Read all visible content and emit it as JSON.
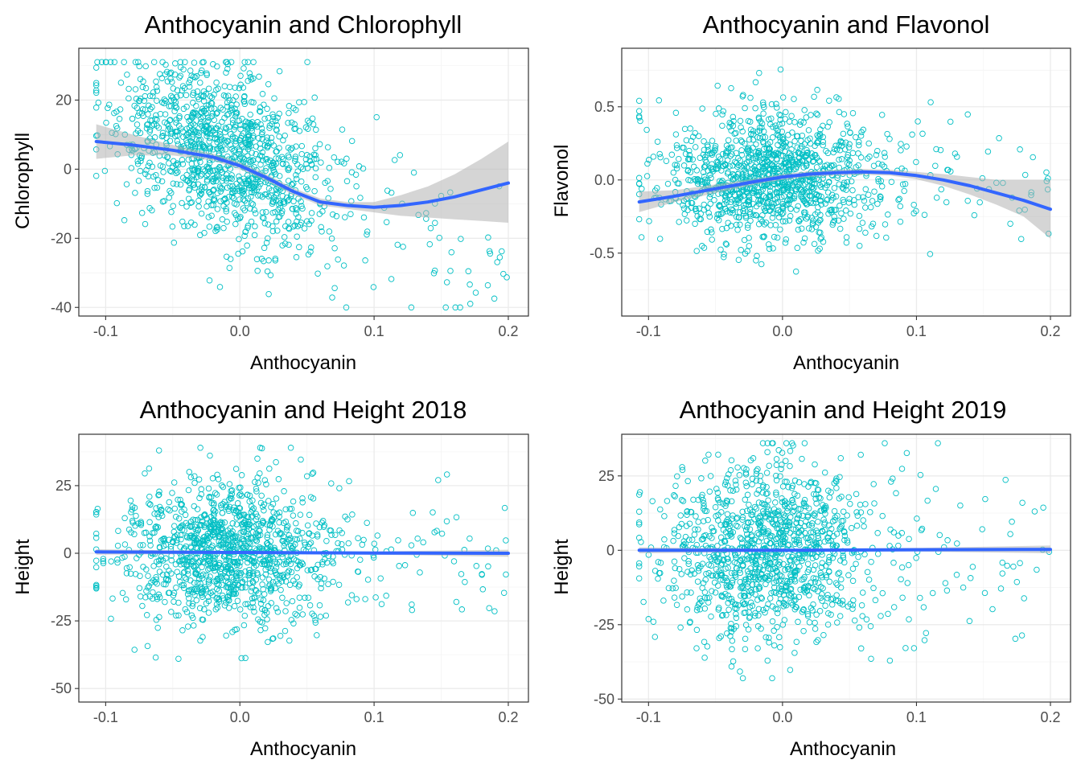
{
  "colors": {
    "points": "#00BFC4",
    "smooth": "#3366FF",
    "ribbon": "#B3B3B3"
  },
  "chart_data": [
    {
      "type": "scatter",
      "title": "Anthocyanin and Chlorophyll",
      "xlabel": "Anthocyanin",
      "ylabel": "Chlorophyll",
      "xlim": [
        -0.12,
        0.215
      ],
      "ylim": [
        -42.5,
        35
      ],
      "xticks": [
        -0.1,
        0.0,
        0.1,
        0.2
      ],
      "xtick_labels": [
        "-0.1",
        "0.0",
        "0.1",
        "0.2"
      ],
      "yticks": [
        -40,
        -20,
        0,
        20
      ],
      "ytick_labels": [
        "-40",
        "-20",
        "0",
        "20"
      ],
      "grid": true,
      "point_cloud": {
        "x_center": -0.01,
        "x_sd": 0.04,
        "y_at_center": 4,
        "y_slope": -150,
        "y_sd": 13,
        "y_range": [
          -40,
          31
        ]
      },
      "smooth": {
        "x": [
          -0.107,
          -0.08,
          -0.05,
          -0.02,
          0.0,
          0.02,
          0.04,
          0.06,
          0.08,
          0.1,
          0.12,
          0.14,
          0.16,
          0.18,
          0.2
        ],
        "y": [
          8,
          7,
          5.5,
          3.5,
          1,
          -2.5,
          -6.5,
          -9.5,
          -10.5,
          -11,
          -10.5,
          -9.5,
          -8,
          -6,
          -4
        ],
        "ymin": [
          3,
          4,
          4,
          2.5,
          0,
          -3.5,
          -7.5,
          -10.5,
          -11.5,
          -12.5,
          -13.5,
          -14,
          -14.5,
          -15,
          -15.5
        ],
        "ymax": [
          13,
          10,
          7,
          4.5,
          2,
          -1.5,
          -5.5,
          -8.5,
          -9.5,
          -9.5,
          -7.5,
          -5,
          -1.5,
          3,
          8
        ]
      }
    },
    {
      "type": "scatter",
      "title": "Anthocyanin and Flavonol",
      "xlabel": "Anthocyanin",
      "ylabel": "Flavonol",
      "xlim": [
        -0.12,
        0.215
      ],
      "ylim": [
        -0.93,
        0.9
      ],
      "xticks": [
        -0.1,
        0.0,
        0.1,
        0.2
      ],
      "xtick_labels": [
        "-0.1",
        "0.0",
        "0.1",
        "0.2"
      ],
      "yticks": [
        -0.5,
        0.0,
        0.5
      ],
      "ytick_labels": [
        "-0.5",
        "0.0",
        "0.5"
      ],
      "grid": true,
      "point_cloud": {
        "x_center": -0.01,
        "x_sd": 0.04,
        "y_at_center": 0.02,
        "y_slope": 0,
        "y_sd": 0.22,
        "y_range": [
          -0.85,
          0.85
        ]
      },
      "smooth": {
        "x": [
          -0.107,
          -0.08,
          -0.05,
          -0.02,
          0.0,
          0.02,
          0.04,
          0.06,
          0.08,
          0.1,
          0.12,
          0.14,
          0.16,
          0.18,
          0.2
        ],
        "y": [
          -0.15,
          -0.11,
          -0.06,
          -0.01,
          0.02,
          0.04,
          0.05,
          0.055,
          0.05,
          0.03,
          0.0,
          -0.04,
          -0.09,
          -0.14,
          -0.2
        ],
        "ymin": [
          -0.22,
          -0.15,
          -0.09,
          -0.03,
          0.0,
          0.02,
          0.03,
          0.035,
          0.03,
          0.005,
          -0.04,
          -0.1,
          -0.17,
          -0.25,
          -0.4
        ],
        "ymax": [
          -0.08,
          -0.07,
          -0.03,
          0.01,
          0.04,
          0.06,
          0.07,
          0.075,
          0.07,
          0.055,
          0.04,
          0.02,
          0.0,
          0.0,
          0.0
        ]
      }
    },
    {
      "type": "scatter",
      "title": "Anthocyanin and Height 2018",
      "xlabel": "Anthocyanin",
      "ylabel": "Height",
      "xlim": [
        -0.12,
        0.215
      ],
      "ylim": [
        -55,
        44
      ],
      "xticks": [
        -0.1,
        0.0,
        0.1,
        0.2
      ],
      "xtick_labels": [
        "-0.1",
        "0.0",
        "0.1",
        "0.2"
      ],
      "yticks": [
        -50,
        -25,
        0,
        25
      ],
      "ytick_labels": [
        "-50",
        "-25",
        "0",
        "25"
      ],
      "grid": true,
      "point_cloud": {
        "x_center": -0.01,
        "x_sd": 0.04,
        "y_at_center": 0,
        "y_slope": 0,
        "y_sd": 14,
        "y_range": [
          -39,
          39
        ]
      },
      "smooth": {
        "x": [
          -0.107,
          0.0,
          0.1,
          0.2
        ],
        "y": [
          0.5,
          0.3,
          0.1,
          0.0
        ],
        "ymin": [
          -0.5,
          -0.2,
          -0.5,
          -1.3
        ],
        "ymax": [
          1.5,
          0.8,
          0.7,
          1.3
        ]
      }
    },
    {
      "type": "scatter",
      "title": "Anthocyanin and Height 2019",
      "xlabel": "Anthocyanin",
      "ylabel": "Height",
      "xlim": [
        -0.12,
        0.215
      ],
      "ylim": [
        -51,
        39
      ],
      "xticks": [
        -0.1,
        0.0,
        0.1,
        0.2
      ],
      "xtick_labels": [
        "-0.1",
        "0.0",
        "0.1",
        "0.2"
      ],
      "yticks": [
        -50,
        -25,
        0,
        25
      ],
      "ytick_labels": [
        "-50",
        "-25",
        "0",
        "25"
      ],
      "grid": true,
      "point_cloud": {
        "x_center": -0.01,
        "x_sd": 0.04,
        "y_at_center": 0,
        "y_slope": 0,
        "y_sd": 15,
        "y_range": [
          -43,
          36
        ]
      },
      "smooth": {
        "x": [
          -0.107,
          0.0,
          0.1,
          0.2
        ],
        "y": [
          0.0,
          0.0,
          0.2,
          0.3
        ],
        "ymin": [
          -1.0,
          -0.5,
          -0.4,
          -1.0
        ],
        "ymax": [
          1.0,
          0.5,
          0.8,
          1.6
        ]
      }
    }
  ]
}
